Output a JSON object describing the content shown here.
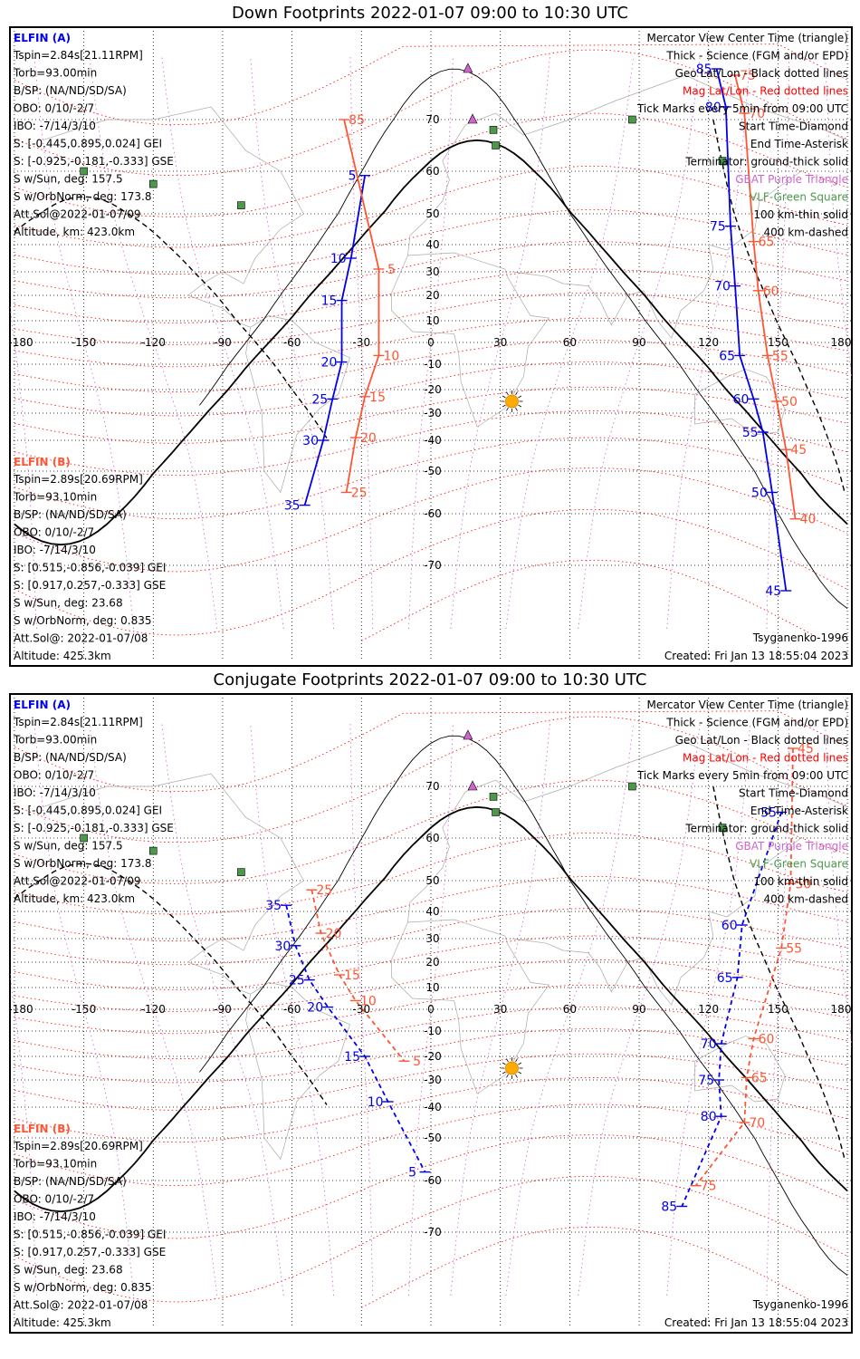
{
  "panels": [
    {
      "id": "down",
      "title": "Down Footprints 2022-01-07 09:00 to 10:30 UTC",
      "sat_a": {
        "name": "ELFIN (A)",
        "lines": [
          "Tspin=2.84s[21.11RPM]",
          "Torb=93.00min",
          "B/SP: (NA/ND/SD/SA)",
          "OBO: 0/10/-2/7",
          "IBO: -7/14/3/10",
          "S: [-0.445,0.895,0.024] GEI",
          "S: [-0.925,-0.181,-0.333] GSE",
          "S w/Sun, deg: 157.5",
          "S w/OrbNorm, deg: 173.8",
          "Att.Sol@2022-01-07/09",
          "Altitude, km: 423.0km"
        ]
      },
      "sat_b": {
        "name": "ELFIN (B)",
        "lines": [
          "Tspin=2.89s[20.69RPM]",
          "Torb=93.10min",
          "B/SP: (NA/ND/SD/SA)",
          "OBO: 0/10/-2/7",
          "IBO: -7/14/3/10",
          "S: [0.515,-0.856,-0.039] GEI",
          "S: [0.917,0.257,-0.333] GSE",
          "S w/Sun, deg: 23.68",
          "S w/OrbNorm, deg: 0.835",
          "Att.Sol@: 2022-01-07/08",
          "Altitude: 425.3km"
        ]
      },
      "legend": [
        {
          "text": "Mercator View Center Time (triangle)",
          "color": "#000000"
        },
        {
          "text": "Thick - Science (FGM and/or EPD)",
          "color": "#000000"
        },
        {
          "text": "Geo Lat/Lon - Black dotted lines",
          "color": "#000000"
        },
        {
          "text": "Mag Lat/Lon - Red dotted lines",
          "color": "#ff0000"
        },
        {
          "text": "Tick Marks every 5min from 09:00 UTC",
          "color": "#000000"
        },
        {
          "text": "Start Time-Diamond",
          "color": "#000000"
        },
        {
          "text": "End Time-Asterisk",
          "color": "#000000"
        },
        {
          "text": "Terminator: ground-thick solid",
          "color": "#000000"
        },
        {
          "text": "GBAT Purple Triangle",
          "color": "#cc66cc"
        },
        {
          "text": "VLF-Green Square",
          "color": "#4a9a4a"
        },
        {
          "text": "100 km-thin solid",
          "color": "#000000"
        },
        {
          "text": "400 km-dashed",
          "color": "#000000"
        }
      ],
      "model": "Tsyganenko-1996",
      "created": "Created: Fri Jan 13 18:55:04 2023",
      "track_a_labels": [
        {
          "lon": -34,
          "lat": 59,
          "t": "5"
        },
        {
          "lon": -40,
          "lat": 35,
          "t": "10"
        },
        {
          "lon": -44,
          "lat": 18,
          "t": "15"
        },
        {
          "lon": -44,
          "lat": -9,
          "t": "20"
        },
        {
          "lon": -48,
          "lat": -24,
          "t": "25"
        },
        {
          "lon": -52,
          "lat": -40,
          "t": "30"
        },
        {
          "lon": -60,
          "lat": -58,
          "t": "35"
        },
        {
          "lon": 118,
          "lat": 78,
          "t": "85"
        },
        {
          "lon": 122,
          "lat": 72,
          "t": "80"
        },
        {
          "lon": 124,
          "lat": 46,
          "t": "75"
        },
        {
          "lon": 126,
          "lat": 24,
          "t": "70"
        },
        {
          "lon": 128,
          "lat": -6,
          "t": "65"
        },
        {
          "lon": 134,
          "lat": -24,
          "t": "60"
        },
        {
          "lon": 138,
          "lat": -37,
          "t": "55"
        },
        {
          "lon": 142,
          "lat": -55,
          "t": "50"
        },
        {
          "lon": 148,
          "lat": -74,
          "t": "45"
        }
      ],
      "track_b_labels": [
        {
          "lon": -43,
          "lat": 70,
          "t": "85"
        },
        {
          "lon": -28,
          "lat": 31,
          "t": "5"
        },
        {
          "lon": -28,
          "lat": -6,
          "t": "10"
        },
        {
          "lon": -34,
          "lat": -23,
          "t": "15"
        },
        {
          "lon": -38,
          "lat": -39,
          "t": "20"
        },
        {
          "lon": -42,
          "lat": -55,
          "t": "25"
        },
        {
          "lon": 126,
          "lat": 77,
          "t": "75"
        },
        {
          "lon": 130,
          "lat": 71,
          "t": "70"
        },
        {
          "lon": 134,
          "lat": 41,
          "t": "65"
        },
        {
          "lon": 136,
          "lat": 22,
          "t": "60"
        },
        {
          "lon": 140,
          "lat": -6,
          "t": "55"
        },
        {
          "lon": 144,
          "lat": -25,
          "t": "50"
        },
        {
          "lon": 148,
          "lat": -43,
          "t": "45"
        },
        {
          "lon": 152,
          "lat": -61,
          "t": "40"
        }
      ]
    },
    {
      "id": "conjugate",
      "title": "Conjugate Footprints 2022-01-07 09:00 to 10:30 UTC",
      "sat_a": {
        "name": "ELFIN (A)",
        "lines": [
          "Tspin=2.84s[21.11RPM]",
          "Torb=93.00min",
          "B/SP: (NA/ND/SD/SA)",
          "OBO: 0/10/-2/7",
          "IBO: -7/14/3/10",
          "S: [-0.445,0.895,0.024] GEI",
          "S: [-0.925,-0.181,-0.333] GSE",
          "S w/Sun, deg: 157.5",
          "S w/OrbNorm, deg: 173.8",
          "Att.Sol@2022-01-07/09",
          "Altitude, km: 423.0km"
        ]
      },
      "sat_b": {
        "name": "ELFIN (B)",
        "lines": [
          "Tspin=2.89s[20.69RPM]",
          "Torb=93.10min",
          "B/SP: (NA/ND/SD/SA)",
          "OBO: 0/10/-2/7",
          "IBO: -7/14/3/10",
          "S: [0.515,-0.856,-0.039] GEI",
          "S: [0.917,0.257,-0.333] GSE",
          "S w/Sun, deg: 23.68",
          "S w/OrbNorm, deg: 0.835",
          "Att.Sol@: 2022-01-07/08",
          "Altitude: 425.3km"
        ]
      },
      "legend": [
        {
          "text": "Mercator View Center Time (triangle)",
          "color": "#000000"
        },
        {
          "text": "Thick - Science (FGM and/or EPD)",
          "color": "#000000"
        },
        {
          "text": "Geo Lat/Lon - Black dotted lines",
          "color": "#000000"
        },
        {
          "text": "Mag Lat/Lon - Red dotted lines",
          "color": "#ff0000"
        },
        {
          "text": "Tick Marks every 5min from 09:00 UTC",
          "color": "#000000"
        },
        {
          "text": "Start Time-Diamond",
          "color": "#000000"
        },
        {
          "text": "End Time-Asterisk",
          "color": "#000000"
        },
        {
          "text": "Terminator: ground-thick solid",
          "color": "#000000"
        },
        {
          "text": "GBAT Purple Triangle",
          "color": "#cc66cc"
        },
        {
          "text": "VLF-Green Square",
          "color": "#4a9a4a"
        },
        {
          "text": "100 km-thin solid",
          "color": "#000000"
        },
        {
          "text": "400 km-dashed",
          "color": "#000000"
        }
      ],
      "model": "Tsyganenko-1996",
      "created": "Created: Fri Jan 13 18:55:04 2023",
      "track_a_labels": [
        {
          "lon": -68,
          "lat": 42,
          "t": "35"
        },
        {
          "lon": -64,
          "lat": 27,
          "t": "30"
        },
        {
          "lon": -58,
          "lat": 13,
          "t": "25"
        },
        {
          "lon": -50,
          "lat": 1,
          "t": "20"
        },
        {
          "lon": -34,
          "lat": -20,
          "t": "15"
        },
        {
          "lon": -24,
          "lat": -38,
          "t": "10"
        },
        {
          "lon": -8,
          "lat": -58,
          "t": "5"
        },
        {
          "lon": 146,
          "lat": 65,
          "t": "55"
        },
        {
          "lon": 129,
          "lat": 35,
          "t": "60"
        },
        {
          "lon": 127,
          "lat": 14,
          "t": "65"
        },
        {
          "lon": 120,
          "lat": -15,
          "t": "70"
        },
        {
          "lon": 119,
          "lat": -30,
          "t": "75"
        },
        {
          "lon": 120,
          "lat": -43,
          "t": "80"
        },
        {
          "lon": 103,
          "lat": -65,
          "t": "85"
        }
      ],
      "track_b_labels": [
        {
          "lon": -57,
          "lat": 47,
          "t": "25"
        },
        {
          "lon": -53,
          "lat": 32,
          "t": "20"
        },
        {
          "lon": -45,
          "lat": 15,
          "t": "15"
        },
        {
          "lon": -38,
          "lat": 4,
          "t": "10"
        },
        {
          "lon": -17,
          "lat": -22,
          "t": "5"
        },
        {
          "lon": 151,
          "lat": 76,
          "t": "45"
        },
        {
          "lon": 150,
          "lat": 49,
          "t": "50"
        },
        {
          "lon": 146,
          "lat": 26,
          "t": "55"
        },
        {
          "lon": 134,
          "lat": -13,
          "t": "60"
        },
        {
          "lon": 131,
          "lat": -29,
          "t": "65"
        },
        {
          "lon": 130,
          "lat": -45,
          "t": "70"
        },
        {
          "lon": 109,
          "lat": -61,
          "t": "75"
        }
      ]
    }
  ],
  "axes": {
    "lon_ticks": [
      "-180",
      "-150",
      "-120",
      "-90",
      "-60",
      "-30",
      "0",
      "30",
      "60",
      "90",
      "120",
      "150",
      "180"
    ],
    "lat_ticks": [
      "70",
      "60",
      "50",
      "40",
      "30",
      "20",
      "10",
      "0",
      "-10",
      "-20",
      "-30",
      "-40",
      "-50",
      "-60",
      "-70"
    ]
  },
  "colors": {
    "sat_a": "#0000ee",
    "sat_b": "#ff5533",
    "mag_grid": "#ff0000",
    "geo_grid": "#000000",
    "gbat": "#cc66cc",
    "vlf": "#4a9a4a",
    "sun": "#ffaa00"
  }
}
